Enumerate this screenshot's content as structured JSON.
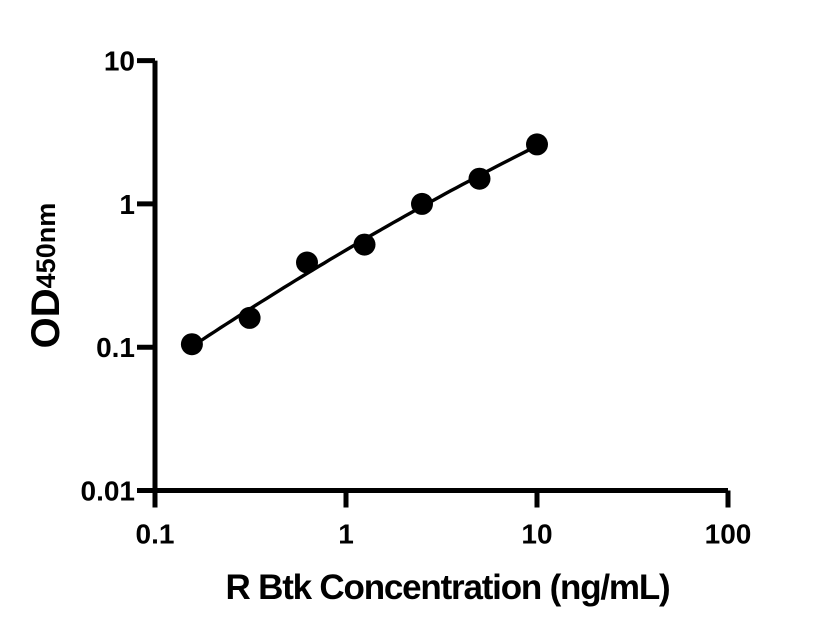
{
  "page": {
    "background_color": "#ffffff",
    "foreground_color": "#000000"
  },
  "chart_data": {
    "type": "scatter",
    "title": "",
    "xlabel": "R Btk Concentration (ng/mL)",
    "ylabel_main": "OD",
    "ylabel_subscript": "450nm",
    "x_scale": "log10",
    "y_scale": "log10",
    "xlim": [
      0.1,
      100
    ],
    "ylim": [
      0.01,
      10
    ],
    "x_tick_values": [
      0.1,
      1,
      10,
      100
    ],
    "x_tick_labels": [
      "0.1",
      "1",
      "10",
      "100"
    ],
    "y_tick_values": [
      10,
      1,
      0.1,
      0.01
    ],
    "y_tick_labels": [
      "10",
      "1",
      "0.1",
      "0.01"
    ],
    "grid": false,
    "legend": "none",
    "series": [
      {
        "name": "standard-curve-points",
        "marker": "filled-circle",
        "color": "#000000",
        "x": [
          0.156,
          0.313,
          0.625,
          1.25,
          2.5,
          5,
          10
        ],
        "y": [
          0.105,
          0.16,
          0.39,
          0.52,
          1.0,
          1.5,
          2.6
        ]
      }
    ],
    "fit_line": {
      "style": "solid",
      "color": "#000000",
      "method": "quadratic-fit-in-log-log",
      "x_start": 0.156,
      "x_end": 10
    }
  }
}
